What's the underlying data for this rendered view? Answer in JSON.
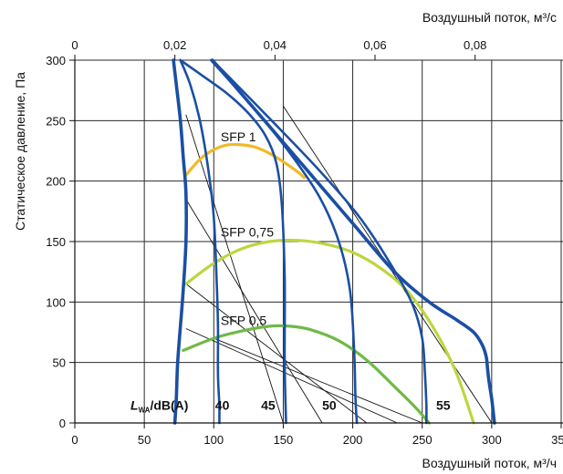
{
  "chart_data": {
    "type": "line",
    "title": "",
    "xlabel": "Воздушный поток, м³/ч",
    "x2label": "Воздушный поток, м³/с",
    "ylabel": "Статическое давление, Па",
    "xlim": [
      0,
      350
    ],
    "x2lim": [
      0,
      0.0972
    ],
    "ylim": [
      0,
      300
    ],
    "x_ticks": [
      "0",
      "50",
      "100",
      "150",
      "200",
      "250",
      "300",
      "350"
    ],
    "x2_ticks": [
      "0",
      "0,02",
      "0,04",
      "0,06",
      "0,08"
    ],
    "x2_tick_values": [
      0,
      0.02,
      0.04,
      0.06,
      0.08
    ],
    "y_ticks": [
      "0",
      "50",
      "100",
      "150",
      "200",
      "250",
      "300"
    ],
    "grid": true,
    "fan_curves": [
      {
        "x": [
          71,
          73,
          76,
          78,
          80,
          80,
          78,
          76,
          74,
          73,
          72
        ],
        "y": [
          300,
          280,
          250,
          220,
          190,
          150,
          110,
          80,
          50,
          20,
          0
        ]
      },
      {
        "x": [
          76,
          83,
          90,
          96,
          100,
          102,
          103,
          103,
          104,
          104
        ],
        "y": [
          300,
          280,
          250,
          210,
          170,
          120,
          80,
          40,
          15,
          0
        ]
      },
      {
        "x": [
          76,
          92,
          110,
          125,
          137,
          145,
          149,
          151,
          151,
          152
        ],
        "y": [
          300,
          287,
          272,
          256,
          238,
          215,
          180,
          120,
          50,
          0
        ]
      },
      {
        "x": [
          98,
          120,
          140,
          160,
          177,
          190,
          198,
          201,
          202,
          203
        ],
        "y": [
          300,
          272,
          245,
          215,
          185,
          150,
          110,
          60,
          20,
          0
        ]
      },
      {
        "x": [
          99,
          140,
          175,
          205,
          228,
          243,
          250,
          252,
          253,
          253
        ],
        "y": [
          300,
          252,
          210,
          170,
          130,
          98,
          70,
          40,
          15,
          0
        ]
      },
      {
        "x": [
          99,
          150,
          200,
          230,
          255,
          275,
          287,
          293,
          296,
          297,
          298,
          300,
          301,
          302
        ],
        "y": [
          300,
          232,
          165,
          125,
          100,
          85,
          75,
          65,
          55,
          45,
          35,
          20,
          10,
          0
        ]
      }
    ],
    "sfp_curves": [
      {
        "name": "SFP 1",
        "color": "#f2b927",
        "label": "SFP 1",
        "label_x": 105,
        "label_y": 233,
        "x": [
          80,
          90,
          100,
          110,
          120,
          130,
          140,
          150,
          160,
          165
        ],
        "y": [
          205,
          218,
          226,
          230,
          230,
          228,
          223,
          216,
          208,
          203
        ]
      },
      {
        "name": "SFP 0,75",
        "color": "#bcd640",
        "label": "SFP 0,75",
        "label_x": 105,
        "label_y": 154,
        "x": [
          80,
          100,
          120,
          140,
          160,
          180,
          200,
          220,
          240,
          260,
          275,
          287
        ],
        "y": [
          115,
          132,
          144,
          150,
          151,
          148,
          141,
          128,
          108,
          75,
          40,
          0
        ]
      },
      {
        "name": "SFP 0,5",
        "color": "#6fba46",
        "label": "SFP 0,5",
        "label_x": 105,
        "label_y": 81,
        "x": [
          78,
          100,
          120,
          140,
          155,
          170,
          190,
          210,
          230,
          245,
          255
        ],
        "y": [
          60,
          70,
          76,
          80,
          80,
          77,
          68,
          52,
          30,
          13,
          0
        ]
      }
    ],
    "noise_lines": [
      {
        "x": [
          80,
          150
        ],
        "y": [
          255,
          0
        ]
      },
      {
        "x": [
          80,
          178
        ],
        "y": [
          185,
          0
        ]
      },
      {
        "x": [
          80,
          210
        ],
        "y": [
          115,
          0
        ]
      },
      {
        "x": [
          80,
          232
        ],
        "y": [
          78,
          0
        ]
      },
      {
        "x": [
          100,
          250
        ],
        "y": [
          70,
          0
        ]
      },
      {
        "x": [
          150,
          300
        ],
        "y": [
          262,
          0
        ]
      }
    ],
    "noise_labels": {
      "prefix": "L",
      "subscript": "WA",
      "suffix": "/dB(A)",
      "levels": [
        {
          "text": "40",
          "x": 101
        },
        {
          "text": "45",
          "x": 134
        },
        {
          "text": "50",
          "x": 178
        },
        {
          "text": "55",
          "x": 260
        }
      ],
      "label_y": 11
    }
  }
}
